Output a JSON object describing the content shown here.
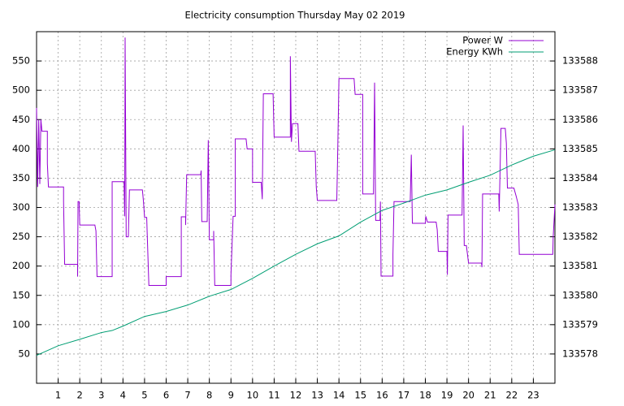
{
  "chart_data": {
    "type": "line",
    "title": "Electricity consumption Thursday May 02 2019",
    "xlim": [
      0,
      24
    ],
    "xticks": [
      1,
      2,
      3,
      4,
      5,
      6,
      7,
      8,
      9,
      10,
      11,
      12,
      13,
      14,
      15,
      16,
      17,
      18,
      19,
      20,
      21,
      22,
      23
    ],
    "ylim": [
      0,
      600
    ],
    "yticks": [
      50,
      100,
      150,
      200,
      250,
      300,
      350,
      400,
      450,
      500,
      550
    ],
    "y2lim": [
      133577,
      133589
    ],
    "y2ticks": [
      133578,
      133579,
      133580,
      133581,
      133582,
      133583,
      133584,
      133585,
      133586,
      133587,
      133588
    ],
    "grid": true,
    "legend": "top-right",
    "series": [
      {
        "name": "Power W",
        "color": "#9400d3",
        "x": [
          0,
          0.05,
          0.1,
          0.15,
          0.2,
          0.25,
          0.5,
          0.5,
          0.55,
          1.25,
          1.25,
          1.3,
          1.9,
          1.9,
          1.92,
          1.97,
          2.0,
          2.7,
          2.75,
          2.8,
          3.5,
          3.5,
          4.05,
          4.08,
          4.1,
          4.15,
          4.25,
          4.3,
          4.9,
          4.95,
          5.0,
          5.1,
          5.12,
          5.2,
          6.0,
          6.0,
          6.7,
          6.7,
          6.9,
          6.9,
          6.95,
          7.6,
          7.62,
          7.65,
          7.9,
          7.95,
          8.0,
          8.2,
          8.2,
          8.25,
          9.0,
          9.0,
          9.1,
          9.2,
          9.2,
          9.7,
          9.75,
          10.0,
          10.0,
          10.4,
          10.45,
          10.5,
          10.95,
          11.0,
          11.75,
          11.75,
          11.8,
          11.85,
          12.1,
          12.15,
          12.9,
          12.95,
          13.0,
          13.9,
          13.95,
          14.0,
          14.7,
          14.75,
          15.1,
          15.1,
          15.6,
          15.65,
          15.7,
          15.9,
          15.92,
          15.95,
          16.5,
          16.5,
          16.55,
          17.3,
          17.35,
          17.4,
          18.0,
          18.02,
          18.1,
          18.5,
          18.55,
          18.6,
          19.0,
          19.02,
          19.05,
          19.7,
          19.75,
          19.8,
          19.9,
          20.0,
          20.6,
          20.62,
          20.65,
          21.4,
          21.42,
          21.5,
          21.7,
          21.75,
          21.8,
          22.1,
          22.2,
          22.3,
          22.35,
          23.9,
          23.92,
          24
        ],
        "values": [
          470,
          335,
          450,
          340,
          450,
          430,
          430,
          375,
          335,
          335,
          310,
          203,
          203,
          182,
          310,
          310,
          270,
          270,
          260,
          182,
          182,
          344,
          344,
          285,
          590,
          250,
          250,
          330,
          330,
          310,
          283,
          283,
          258,
          167,
          167,
          182,
          182,
          284,
          284,
          270,
          356,
          356,
          363,
          276,
          276,
          415,
          245,
          245,
          260,
          167,
          167,
          185,
          285,
          285,
          417,
          417,
          400,
          400,
          343,
          343,
          314,
          494,
          494,
          420,
          420,
          558,
          412,
          443,
          443,
          396,
          396,
          335,
          312,
          312,
          410,
          520,
          520,
          493,
          493,
          323,
          323,
          513,
          278,
          278,
          310,
          183,
          183,
          220,
          310,
          310,
          390,
          273,
          273,
          285,
          275,
          275,
          262,
          225,
          225,
          185,
          287,
          287,
          440,
          235,
          235,
          205,
          205,
          198,
          323,
          323,
          293,
          435,
          435,
          410,
          333,
          333,
          320,
          305,
          220,
          220,
          250,
          305
        ]
      },
      {
        "name": "Energy KWh",
        "color": "#009e73",
        "axis": "y2",
        "x": [
          0,
          1,
          2,
          3,
          3.5,
          4,
          5,
          6,
          7,
          8,
          9,
          10,
          11,
          12,
          13,
          14,
          15,
          16,
          17,
          18,
          19,
          20,
          21,
          22,
          23,
          24
        ],
        "values": [
          133577.95,
          133578.28,
          133578.5,
          133578.73,
          133578.8,
          133578.95,
          133579.28,
          133579.45,
          133579.67,
          133579.97,
          133580.2,
          133580.58,
          133581.0,
          133581.4,
          133581.76,
          133582.03,
          133582.5,
          133582.9,
          133583.15,
          133583.42,
          133583.6,
          133583.86,
          133584.1,
          133584.45,
          133584.75,
          133584.97
        ]
      }
    ]
  }
}
